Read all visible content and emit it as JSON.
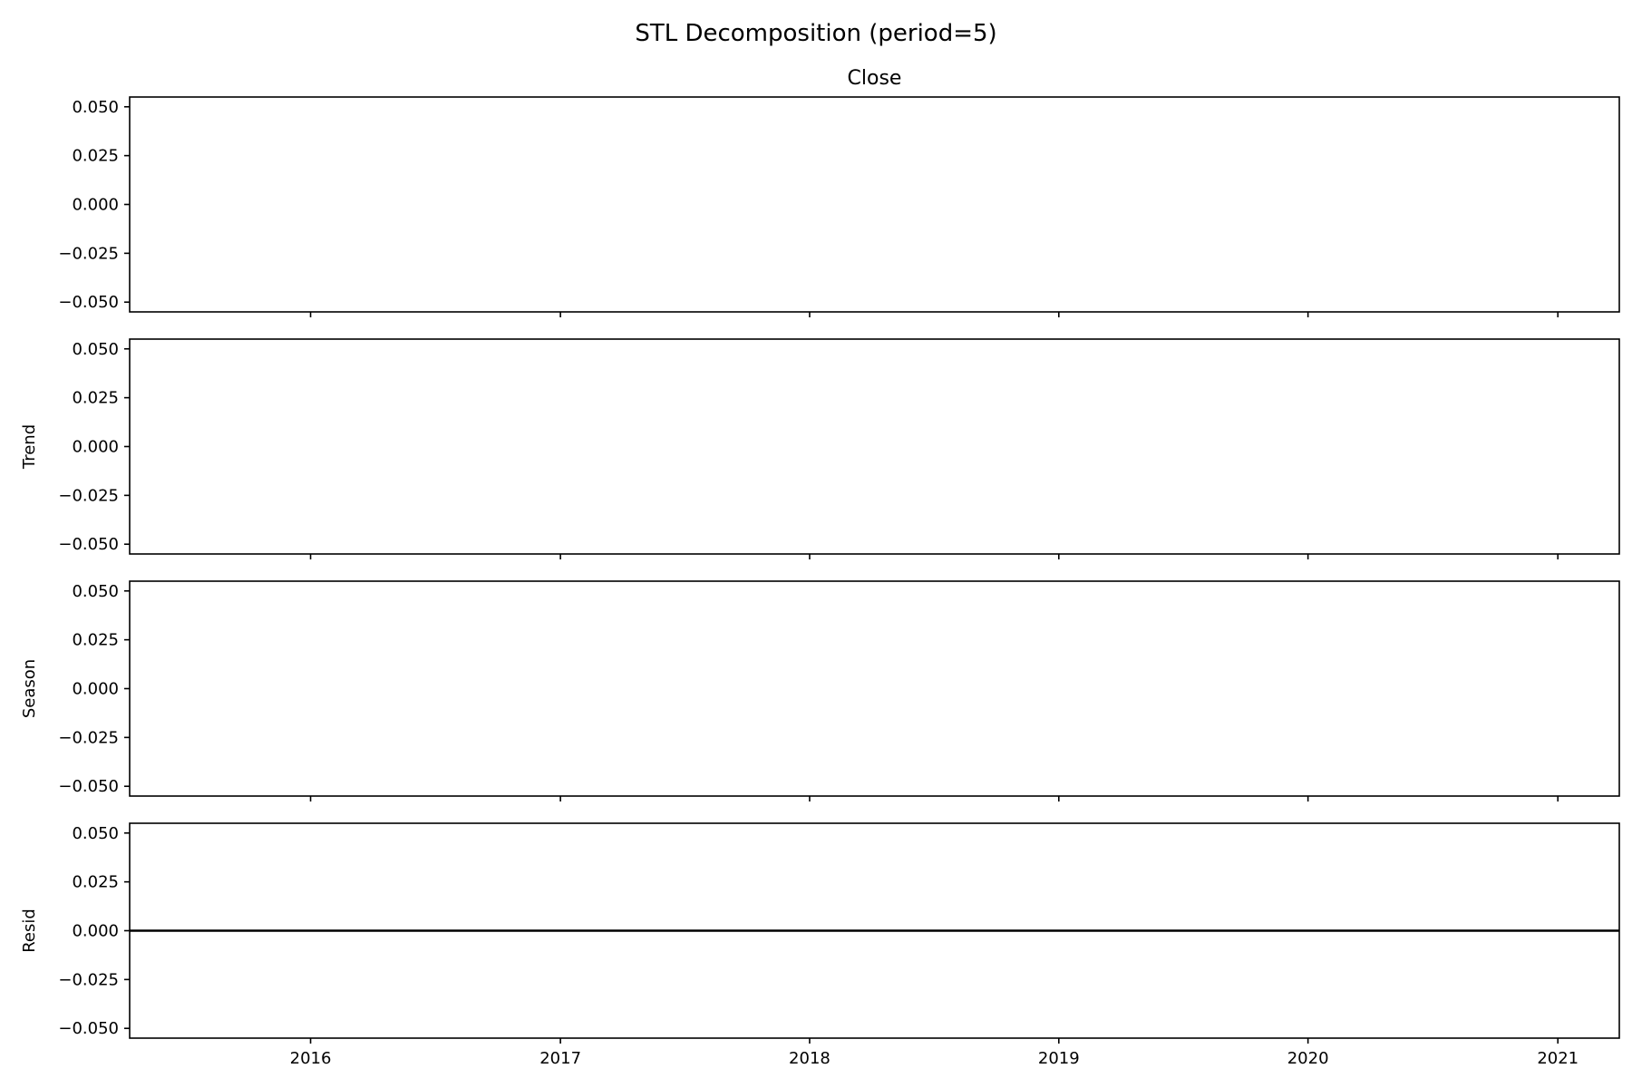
{
  "chart_data": {
    "type": "line",
    "title": "STL Decomposition (period=5)",
    "x_tick_labels": [
      "2016",
      "2017",
      "2018",
      "2019",
      "2020",
      "2021"
    ],
    "x_ticks": [
      "2016-01-01",
      "2017-01-01",
      "2018-01-01",
      "2019-01-01",
      "2020-01-01",
      "2021-01-01"
    ],
    "xlim": [
      "2015-04-11",
      "2021-04-01"
    ],
    "shared_x": true,
    "grid": false,
    "panels": [
      {
        "title": "Close",
        "ylabel": "",
        "ylim": [
          -0.055,
          0.055
        ],
        "y_ticks": [
          0.05,
          0.025,
          0.0,
          -0.025,
          -0.05
        ],
        "y_tick_labels": [
          "0.050",
          "0.025",
          "0.000",
          "−0.025",
          "−0.050"
        ],
        "series": []
      },
      {
        "title": "",
        "ylabel": "Trend",
        "ylim": [
          -0.055,
          0.055
        ],
        "y_ticks": [
          0.05,
          0.025,
          0.0,
          -0.025,
          -0.05
        ],
        "y_tick_labels": [
          "0.050",
          "0.025",
          "0.000",
          "−0.025",
          "−0.050"
        ],
        "series": []
      },
      {
        "title": "",
        "ylabel": "Season",
        "ylim": [
          -0.055,
          0.055
        ],
        "y_ticks": [
          0.05,
          0.025,
          0.0,
          -0.025,
          -0.05
        ],
        "y_tick_labels": [
          "0.050",
          "0.025",
          "0.000",
          "−0.025",
          "−0.050"
        ],
        "series": []
      },
      {
        "title": "",
        "ylabel": "Resid",
        "ylim": [
          -0.055,
          0.055
        ],
        "y_ticks": [
          0.05,
          0.025,
          0.0,
          -0.025,
          -0.05
        ],
        "y_tick_labels": [
          "0.050",
          "0.025",
          "0.000",
          "−0.025",
          "−0.050"
        ],
        "series": [
          {
            "x": [
              "2015-04-11",
              "2021-04-01"
            ],
            "y": [
              0.0,
              0.0
            ],
            "color": "#000000"
          }
        ]
      }
    ]
  }
}
